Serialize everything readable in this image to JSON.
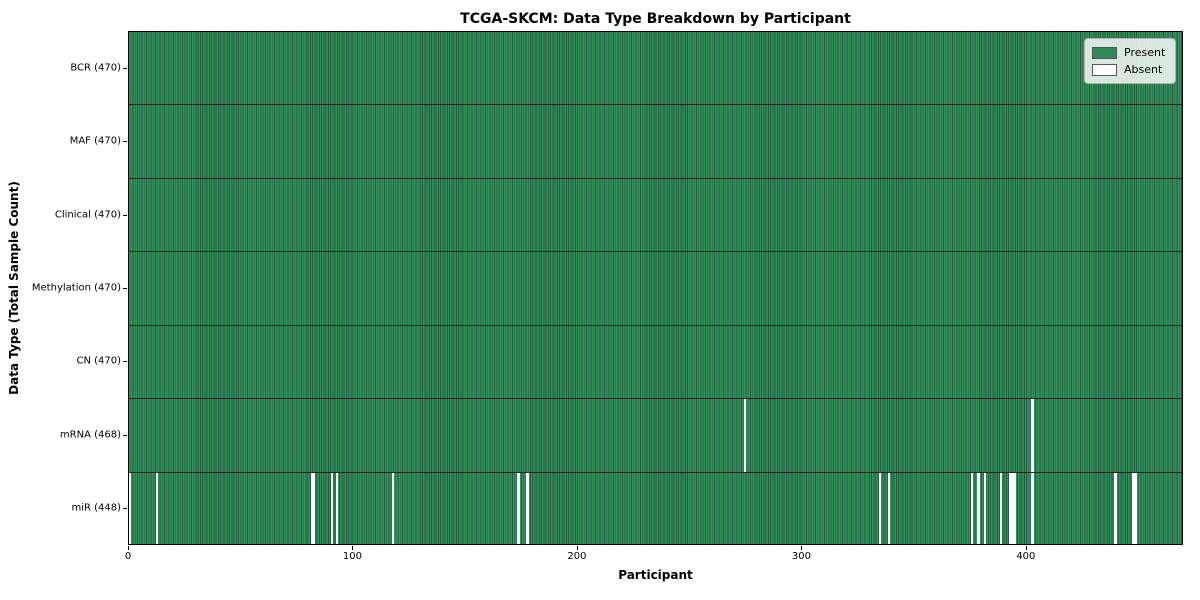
{
  "title": "TCGA-SKCM: Data Type Breakdown by Participant",
  "xlabel": "Participant",
  "ylabel": "Data Type (Total Sample Count)",
  "legend": {
    "present_label": "Present",
    "absent_label": "Absent"
  },
  "colors": {
    "present": "#2e8b57",
    "present_stripe_light": "#36915f",
    "present_stripe_dark": "#1e5f3c",
    "absent": "#ffffff",
    "row_separator": "rgba(0,0,0,0.65)",
    "frame": "#000000"
  },
  "chart_data": {
    "type": "heatmap",
    "title": "TCGA-SKCM: Data Type Breakdown by Participant",
    "xlabel": "Participant",
    "ylabel": "Data Type (Total Sample Count)",
    "x_range": [
      0,
      470
    ],
    "x_ticks": [
      0,
      100,
      200,
      300,
      400
    ],
    "n_participants": 470,
    "legend_entries": [
      "Present",
      "Absent"
    ],
    "legend_position": "upper right",
    "grid": false,
    "rows": [
      {
        "label": "BCR (470)",
        "total": 470,
        "absent_participants": []
      },
      {
        "label": "MAF (470)",
        "total": 470,
        "absent_participants": []
      },
      {
        "label": "Clinical (470)",
        "total": 470,
        "absent_participants": []
      },
      {
        "label": "Methylation (470)",
        "total": 470,
        "absent_participants": []
      },
      {
        "label": "CN (470)",
        "total": 470,
        "absent_participants": []
      },
      {
        "label": "mRNA (468)",
        "total": 468,
        "absent_participants": [
          274,
          402
        ]
      },
      {
        "label": "miR (448)",
        "total": 448,
        "absent_participants": [
          0,
          12,
          81,
          82,
          90,
          92,
          117,
          173,
          177,
          334,
          338,
          375,
          378,
          381,
          388,
          392,
          393,
          394,
          402,
          439,
          447,
          448
        ]
      }
    ]
  }
}
